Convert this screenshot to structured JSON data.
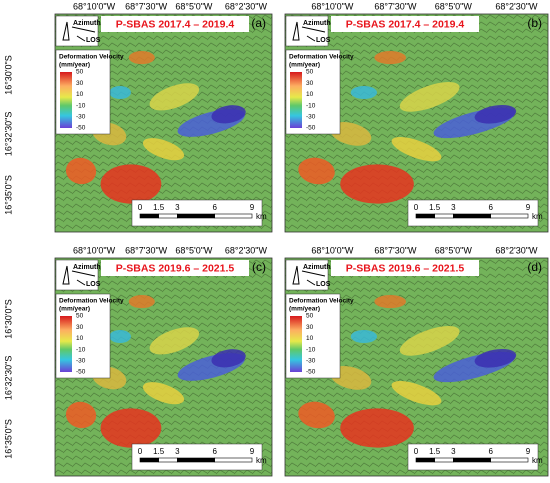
{
  "panels": [
    {
      "letter": "(a)",
      "title": "P-SBAS 2017.4 – 2019.4",
      "azimuth": "Azimuth",
      "los": "LOS",
      "lon_labels": [
        "68°10'0\"W",
        "68°7'30\"W",
        "68°5'0\"W",
        "68°2'30\"W"
      ],
      "lat_labels": [
        "16°30'0\"S",
        "16°32'30\"S",
        "16°35'0\"S"
      ],
      "legend": {
        "title": "Deformation Velocity",
        "unit": "(mm/year)",
        "ticks": [
          50,
          30,
          10,
          -10,
          -30,
          -50
        ]
      },
      "scale": {
        "ticks": [
          0,
          1.5,
          3,
          6,
          9
        ],
        "unit": "km"
      }
    },
    {
      "letter": "(b)",
      "title": "P-SBAS 2017.4 – 2019.4",
      "azimuth": "Azimuth",
      "los": "LOS",
      "lon_labels": [
        "68°10'0\"W",
        "68°7'30\"W",
        "68°5'0\"W",
        "68°2'30\"W"
      ],
      "lat_labels": [],
      "legend": {
        "title": "Deformation Velocity",
        "unit": "(mm/year)",
        "ticks": [
          50,
          30,
          10,
          -10,
          -30,
          -50
        ]
      },
      "scale": {
        "ticks": [
          0,
          1.5,
          3,
          6,
          9
        ],
        "unit": "km"
      }
    },
    {
      "letter": "(c)",
      "title": "P-SBAS 2019.6 – 2021.5",
      "azimuth": "Azimuth",
      "los": "LOS",
      "lon_labels": [
        "68°10'0\"W",
        "68°7'30\"W",
        "68°5'0\"W",
        "68°2'30\"W"
      ],
      "lat_labels": [
        "16°30'0\"S",
        "16°32'30\"S",
        "16°35'0\"S"
      ],
      "legend": {
        "title": "Deformation Velocity",
        "unit": "(mm/year)",
        "ticks": [
          50,
          30,
          10,
          -10,
          -30,
          -50
        ]
      },
      "scale": {
        "ticks": [
          0,
          1.5,
          3,
          6,
          9
        ],
        "unit": "km"
      }
    },
    {
      "letter": "(d)",
      "title": "P-SBAS 2019.6 – 2021.5",
      "azimuth": "Azimuth",
      "los": "LOS",
      "lon_labels": [
        "68°10'0\"W",
        "68°7'30\"W",
        "68°5'0\"W",
        "68°2'30\"W"
      ],
      "lat_labels": [],
      "legend": {
        "title": "Deformation Velocity",
        "unit": "(mm/year)",
        "ticks": [
          50,
          30,
          10,
          -10,
          -30,
          -50
        ]
      },
      "scale": {
        "ticks": [
          0,
          1.5,
          3,
          6,
          9
        ],
        "unit": "km"
      }
    }
  ]
}
